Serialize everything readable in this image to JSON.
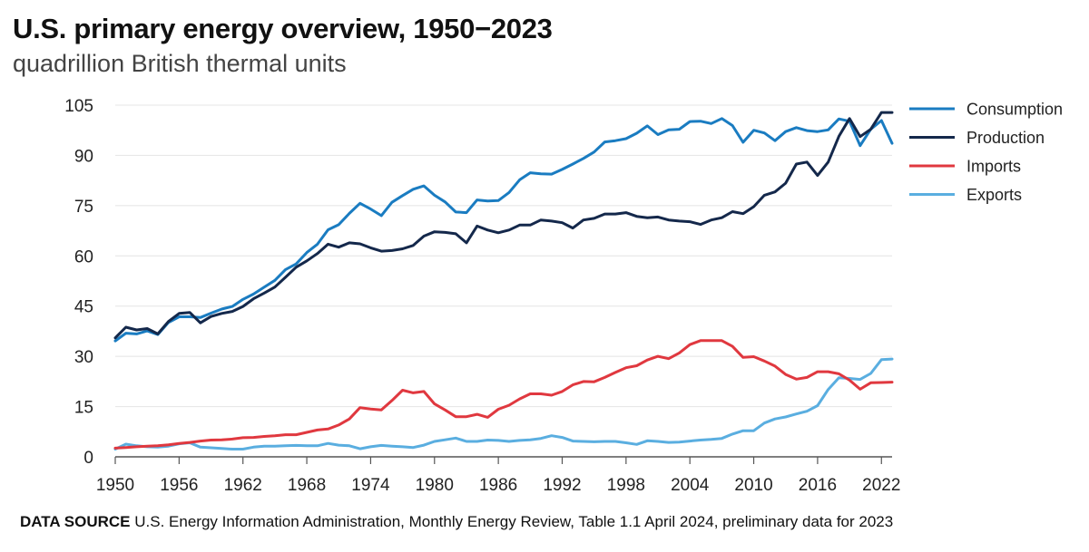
{
  "title": "U.S. primary energy overview, 1950−2023",
  "subtitle": "quadrillion British thermal units",
  "source": {
    "label": "DATA SOURCE",
    "text": "U.S. Energy Information Administration, Monthly Energy Review, Table 1.1 April 2024, preliminary data for 2023"
  },
  "colors": {
    "consumption": "#1a7cc1",
    "production": "#14284b",
    "imports": "#e0383f",
    "exports": "#5aaee0"
  },
  "chart_data": {
    "type": "line",
    "title": "U.S. primary energy overview, 1950−2023",
    "ylabel": "quadrillion British thermal units",
    "xlim": [
      1950,
      2023
    ],
    "ylim": [
      0,
      105
    ],
    "x_ticks": [
      1950,
      1956,
      1962,
      1968,
      1974,
      1980,
      1986,
      1992,
      1998,
      2004,
      2010,
      2016,
      2022
    ],
    "y_ticks": [
      0,
      15,
      30,
      45,
      60,
      75,
      90,
      105
    ],
    "grid": true,
    "legend": "top-right",
    "x": [
      1950,
      1951,
      1952,
      1953,
      1954,
      1955,
      1956,
      1957,
      1958,
      1959,
      1960,
      1961,
      1962,
      1963,
      1964,
      1965,
      1966,
      1967,
      1968,
      1969,
      1970,
      1971,
      1972,
      1973,
      1974,
      1975,
      1976,
      1977,
      1978,
      1979,
      1980,
      1981,
      1982,
      1983,
      1984,
      1985,
      1986,
      1987,
      1988,
      1989,
      1990,
      1991,
      1992,
      1993,
      1994,
      1995,
      1996,
      1997,
      1998,
      1999,
      2000,
      2001,
      2002,
      2003,
      2004,
      2005,
      2006,
      2007,
      2008,
      2009,
      2010,
      2011,
      2012,
      2013,
      2014,
      2015,
      2016,
      2017,
      2018,
      2019,
      2020,
      2021,
      2022,
      2023
    ],
    "series": [
      {
        "name": "Consumption",
        "color": "#1a7cc1",
        "values": [
          34.6,
          36.9,
          36.7,
          37.6,
          36.5,
          40.1,
          41.8,
          41.8,
          41.6,
          42.9,
          44.1,
          44.9,
          47.0,
          48.6,
          50.7,
          52.7,
          55.9,
          57.6,
          61.0,
          63.5,
          67.8,
          69.3,
          72.7,
          75.7,
          74.0,
          72.0,
          76.0,
          78.0,
          79.9,
          80.9,
          78.1,
          76.1,
          73.1,
          72.9,
          76.7,
          76.4,
          76.5,
          78.9,
          82.7,
          84.8,
          84.5,
          84.4,
          85.8,
          87.4,
          89.1,
          91.0,
          94.0,
          94.4,
          95.0,
          96.6,
          98.8,
          96.2,
          97.6,
          97.8,
          100.1,
          100.2,
          99.5,
          101.0,
          98.9,
          93.9,
          97.5,
          96.7,
          94.4,
          97.1,
          98.3,
          97.4,
          97.1,
          97.6,
          100.9,
          100.2,
          92.9,
          97.8,
          100.4,
          93.6
        ]
      },
      {
        "name": "Production",
        "color": "#14284b",
        "values": [
          35.5,
          38.7,
          37.9,
          38.3,
          36.7,
          40.4,
          42.8,
          43.1,
          40.0,
          41.9,
          42.8,
          43.4,
          44.9,
          47.2,
          48.9,
          50.7,
          53.6,
          56.6,
          58.5,
          60.7,
          63.5,
          62.6,
          63.9,
          63.6,
          62.4,
          61.4,
          61.6,
          62.1,
          63.1,
          65.9,
          67.2,
          67.0,
          66.6,
          63.9,
          68.9,
          67.7,
          66.9,
          67.7,
          69.2,
          69.2,
          70.7,
          70.4,
          69.9,
          68.3,
          70.7,
          71.2,
          72.5,
          72.5,
          72.9,
          71.8,
          71.4,
          71.6,
          70.7,
          70.4,
          70.2,
          69.4,
          70.7,
          71.4,
          73.2,
          72.6,
          74.7,
          78.1,
          79.1,
          81.7,
          87.4,
          88.0,
          84.0,
          88.0,
          95.7,
          101.0,
          95.6,
          97.8,
          102.8,
          102.8
        ]
      },
      {
        "name": "Imports",
        "color": "#e0383f",
        "values": [
          2.6,
          2.8,
          3.0,
          3.2,
          3.3,
          3.6,
          4.0,
          4.3,
          4.7,
          5.0,
          5.1,
          5.3,
          5.7,
          5.8,
          6.1,
          6.3,
          6.6,
          6.6,
          7.3,
          8.0,
          8.3,
          9.5,
          11.3,
          14.7,
          14.3,
          14.0,
          16.8,
          19.9,
          19.1,
          19.5,
          15.8,
          14.0,
          12.0,
          12.0,
          12.7,
          11.8,
          14.2,
          15.4,
          17.3,
          18.8,
          18.8,
          18.4,
          19.5,
          21.5,
          22.5,
          22.4,
          23.7,
          25.2,
          26.6,
          27.2,
          28.9,
          30.0,
          29.3,
          31.0,
          33.5,
          34.7,
          34.7,
          34.7,
          33.0,
          29.7,
          29.9,
          28.6,
          27.1,
          24.6,
          23.2,
          23.7,
          25.4,
          25.4,
          24.8,
          22.9,
          20.2,
          22.1,
          22.2,
          22.3
        ]
      },
      {
        "name": "Exports",
        "color": "#5aaee0",
        "values": [
          2.3,
          3.8,
          3.3,
          3.0,
          2.9,
          3.2,
          3.9,
          4.2,
          2.9,
          2.7,
          2.5,
          2.3,
          2.3,
          2.9,
          3.2,
          3.2,
          3.3,
          3.4,
          3.3,
          3.3,
          4.0,
          3.5,
          3.3,
          2.4,
          3.0,
          3.4,
          3.2,
          3.0,
          2.8,
          3.5,
          4.6,
          5.1,
          5.6,
          4.6,
          4.6,
          5.0,
          4.9,
          4.6,
          4.9,
          5.1,
          5.5,
          6.3,
          5.8,
          4.7,
          4.6,
          4.5,
          4.6,
          4.6,
          4.2,
          3.7,
          4.8,
          4.6,
          4.3,
          4.4,
          4.7,
          5.0,
          5.2,
          5.5,
          6.8,
          7.8,
          7.8,
          10.1,
          11.3,
          11.9,
          12.8,
          13.6,
          15.3,
          20.1,
          23.6,
          23.4,
          23.1,
          24.9,
          29.0,
          29.2
        ]
      }
    ]
  }
}
